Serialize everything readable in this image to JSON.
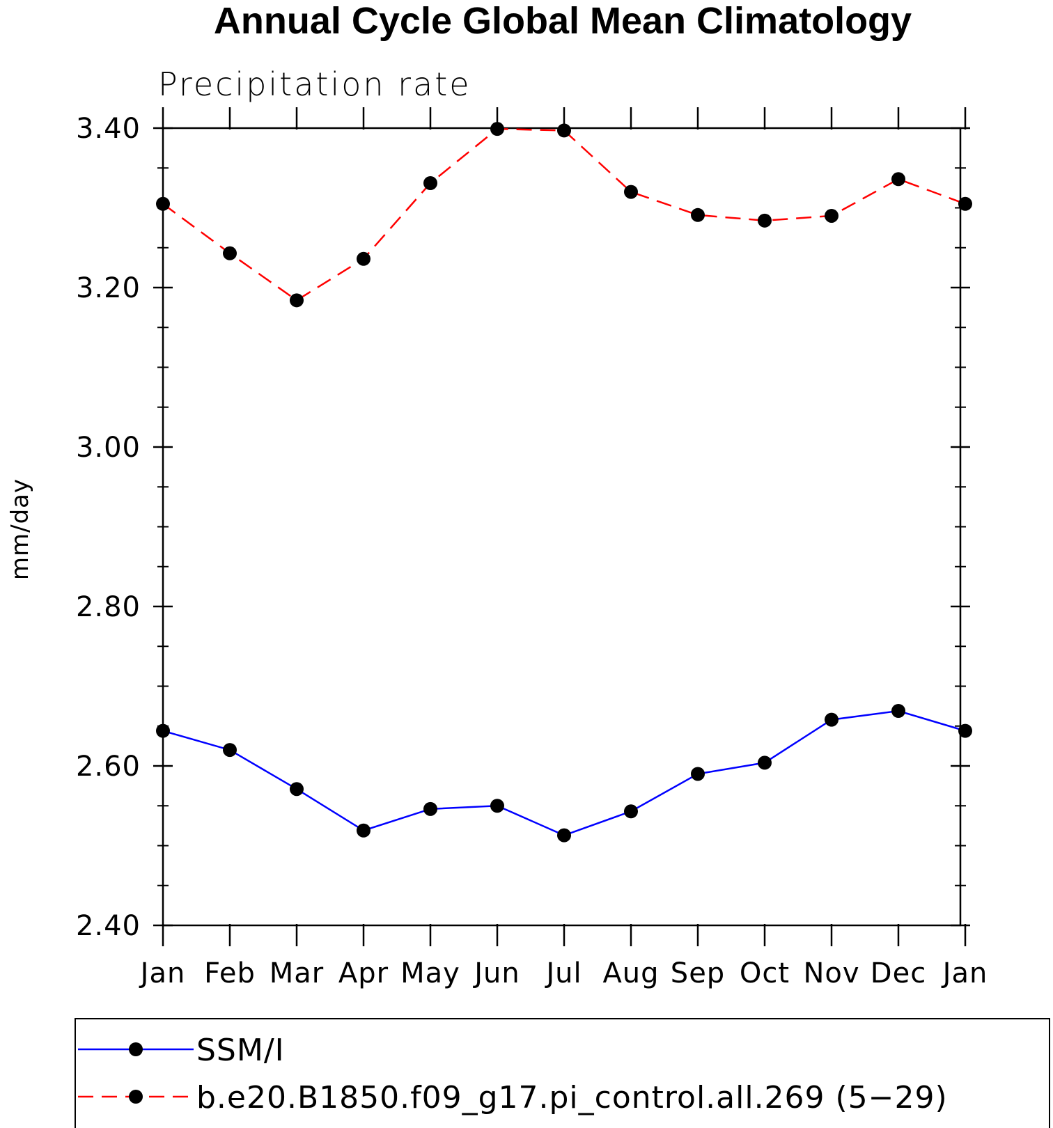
{
  "chart_data": {
    "type": "line",
    "title": "Annual Cycle Global Mean Climatology",
    "subtitle": "Precipitation rate",
    "xlabel": "",
    "ylabel": "mm/day",
    "categories": [
      "Jan",
      "Feb",
      "Mar",
      "Apr",
      "May",
      "Jun",
      "Jul",
      "Aug",
      "Sep",
      "Oct",
      "Nov",
      "Dec",
      "Jan"
    ],
    "ylim": [
      2.4,
      3.4
    ],
    "yticks": [
      2.4,
      2.6,
      2.8,
      3.0,
      3.2,
      3.4
    ],
    "ytick_labels": [
      "2.40",
      "2.60",
      "2.80",
      "3.00",
      "3.20",
      "3.40"
    ],
    "y_minor_step": 0.05,
    "grid": false,
    "legend_position": "bottom",
    "series": [
      {
        "name": "SSM/I",
        "color": "#0000ff",
        "dash": "solid",
        "marker": "filled-circle",
        "values": [
          2.644,
          2.62,
          2.571,
          2.519,
          2.546,
          2.55,
          2.513,
          2.543,
          2.59,
          2.604,
          2.658,
          2.669,
          2.644
        ]
      },
      {
        "name": "b.e20.B1850.f09_g17.pi_control.all.269 (5−29)",
        "color": "#ff0000",
        "dash": "dashed",
        "marker": "filled-circle",
        "values": [
          3.305,
          3.243,
          3.184,
          3.236,
          3.331,
          3.399,
          3.397,
          3.32,
          3.291,
          3.284,
          3.29,
          3.336,
          3.305
        ]
      }
    ]
  }
}
